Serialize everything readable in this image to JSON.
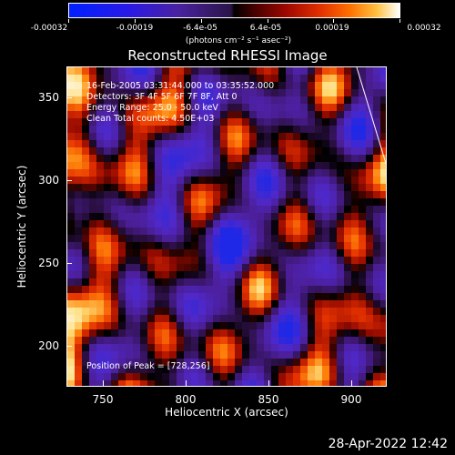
{
  "colorbar": {
    "tick_labels": [
      "-0.00032",
      "-0.00019",
      "-6.4e-05",
      "6.4e-05",
      "0.00019",
      "0.00032"
    ],
    "unit_text": "(photons cm⁻² s⁻¹ asec⁻²)"
  },
  "title": "Reconstructed RHESSI Image",
  "info": {
    "line1": "16-Feb-2005 03:31:44.000 to 03:35:52.000",
    "line2": "Detectors: 3F 4F 5F 6F 7F 8F, Att 0",
    "line3": "Energy Range: 25.0 - 50.0 keV",
    "line4": "Clean    Total counts: 4.50E+03",
    "peak": "Position of Peak = [728,256]"
  },
  "axes": {
    "xlabel": "Heliocentric X (arcsec)",
    "ylabel": "Heliocentric Y (arcsec)",
    "xticks": [
      "750",
      "800",
      "850",
      "900"
    ],
    "yticks": [
      "350",
      "300",
      "250",
      "200"
    ]
  },
  "footer_date": "28-Apr-2022 12:42"
}
